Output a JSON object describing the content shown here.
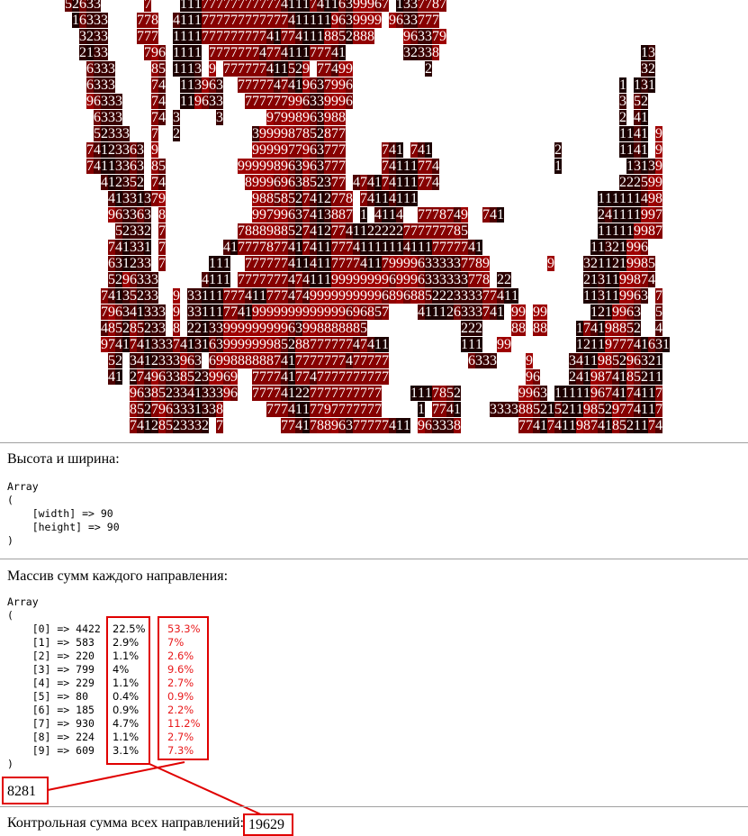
{
  "grid": {
    "width": 90,
    "rows": [
      [
        [
          0,
          "52633"
        ],
        [
          11,
          "7"
        ],
        [
          16,
          "11177777777777411174116399967"
        ],
        [
          46,
          "1337787"
        ]
      ],
      [
        [
          1,
          "16333"
        ],
        [
          10,
          "778"
        ],
        [
          15,
          "41117777777777774111119639999"
        ],
        [
          45,
          "9633777"
        ]
      ],
      [
        [
          2,
          "3233"
        ],
        [
          10,
          "777"
        ],
        [
          15,
          "1111777777777417741118852888"
        ],
        [
          47,
          "963379"
        ]
      ],
      [
        [
          2,
          "2133"
        ],
        [
          11,
          "796"
        ],
        [
          15,
          "1111"
        ],
        [
          20,
          "7777777477411177741"
        ],
        [
          47,
          "32338"
        ],
        [
          80,
          "13"
        ]
      ],
      [
        [
          3,
          "6333"
        ],
        [
          12,
          "85"
        ],
        [
          15,
          "1113"
        ],
        [
          20,
          "9"
        ],
        [
          22,
          "777777411529"
        ],
        [
          35,
          "77499"
        ],
        [
          50,
          "2"
        ],
        [
          80,
          "32"
        ]
      ],
      [
        [
          3,
          "6333"
        ],
        [
          12,
          "74"
        ],
        [
          16,
          "113963"
        ],
        [
          24,
          "7777747419637996"
        ],
        [
          77,
          "1"
        ],
        [
          79,
          "131"
        ]
      ],
      [
        [
          3,
          "96333"
        ],
        [
          12,
          "74"
        ],
        [
          16,
          "119633"
        ],
        [
          25,
          "777777996339996"
        ],
        [
          77,
          "3"
        ],
        [
          79,
          "52"
        ]
      ],
      [
        [
          4,
          "6333"
        ],
        [
          12,
          "74"
        ],
        [
          15,
          "3"
        ],
        [
          21,
          "3"
        ],
        [
          28,
          "97998963988"
        ],
        [
          77,
          "2"
        ],
        [
          79,
          "41"
        ]
      ],
      [
        [
          4,
          "52333"
        ],
        [
          12,
          "7"
        ],
        [
          15,
          "2"
        ],
        [
          26,
          "3999987852877"
        ],
        [
          77,
          "1141"
        ],
        [
          82,
          "9"
        ]
      ],
      [
        [
          3,
          "74123363"
        ],
        [
          12,
          "9"
        ],
        [
          26,
          "9999977963777"
        ],
        [
          44,
          "741"
        ],
        [
          48,
          "741"
        ],
        [
          68,
          "2"
        ],
        [
          77,
          "1141"
        ],
        [
          82,
          "9"
        ]
      ],
      [
        [
          3,
          "74113363"
        ],
        [
          12,
          "85"
        ],
        [
          24,
          "999998963963777"
        ],
        [
          44,
          "74111774"
        ],
        [
          68,
          "1"
        ],
        [
          78,
          "13139"
        ]
      ],
      [
        [
          5,
          "412352"
        ],
        [
          12,
          "74"
        ],
        [
          25,
          "89996963852377 4"
        ],
        [
          41,
          "74174111774"
        ],
        [
          77,
          "222599"
        ]
      ],
      [
        [
          6,
          "41331379"
        ],
        [
          26,
          "98858527412778"
        ],
        [
          41,
          "74114111"
        ],
        [
          74,
          "111111498"
        ]
      ],
      [
        [
          6,
          "963363"
        ],
        [
          13,
          "8"
        ],
        [
          26,
          "99799637413887"
        ],
        [
          41,
          "1"
        ],
        [
          43,
          "4114"
        ],
        [
          49,
          "7778749"
        ],
        [
          58,
          "741"
        ],
        [
          74,
          "241111997"
        ]
      ],
      [
        [
          7,
          "52332"
        ],
        [
          13,
          "7"
        ],
        [
          24,
          "78889885274127741122222777777785"
        ],
        [
          74,
          "111119987"
        ]
      ],
      [
        [
          6,
          "741331"
        ],
        [
          13,
          "7"
        ],
        [
          22,
          "4177778774174117774"
        ],
        [
          41,
          "11111141117777741"
        ],
        [
          73,
          "11321996"
        ]
      ],
      [
        [
          6,
          "631233"
        ],
        [
          13,
          "7"
        ],
        [
          20,
          "111"
        ],
        [
          25,
          "7777774114117777411799996333337789"
        ],
        [
          67,
          "9"
        ],
        [
          72,
          "3211219985"
        ]
      ],
      [
        [
          6,
          "5296333"
        ],
        [
          19,
          "4111"
        ],
        [
          24,
          "77777774741119999999969996333333778"
        ],
        [
          60,
          "22"
        ],
        [
          72,
          "2131199874"
        ]
      ],
      [
        [
          5,
          "74135233"
        ],
        [
          15,
          "9"
        ],
        [
          17,
          "3311177741177747499999999996896885222333377411"
        ],
        [
          72,
          "113119963"
        ],
        [
          82,
          "7"
        ]
      ],
      [
        [
          5,
          "796341333"
        ],
        [
          15,
          "9"
        ],
        [
          17,
          "3311177419999999999999696857"
        ],
        [
          49,
          "411126333741"
        ],
        [
          62,
          "99"
        ],
        [
          65,
          "99"
        ],
        [
          73,
          "1219963"
        ],
        [
          82,
          "5"
        ]
      ],
      [
        [
          5,
          "485285233"
        ],
        [
          15,
          "8"
        ],
        [
          17,
          "2213399999999963998888885"
        ],
        [
          55,
          "222"
        ],
        [
          62,
          "88"
        ],
        [
          65,
          "88"
        ],
        [
          71,
          "174198852"
        ],
        [
          82,
          "4"
        ]
      ],
      [
        [
          5,
          "9741741333741316399999998528877777747411"
        ],
        [
          55,
          "111"
        ],
        [
          60,
          "99"
        ],
        [
          71,
          "1211977741631"
        ]
      ],
      [
        [
          6,
          "52"
        ],
        [
          9,
          "3412333963"
        ],
        [
          20,
          "6998888887417777777477777"
        ],
        [
          56,
          "6333"
        ],
        [
          64,
          "9"
        ],
        [
          70,
          "3411985296321"
        ]
      ],
      [
        [
          6,
          "41"
        ],
        [
          9,
          "274963385239969"
        ],
        [
          26,
          "7777417747777777777"
        ],
        [
          64,
          "96"
        ],
        [
          70,
          "2419874185211"
        ]
      ],
      [
        [
          9,
          "963852334133396"
        ],
        [
          26,
          "777741227777777777"
        ],
        [
          48,
          "1117852"
        ],
        [
          63,
          "9963"
        ],
        [
          68,
          "111119674174117"
        ]
      ],
      [
        [
          9,
          "8527963331338"
        ],
        [
          28,
          "7774117797777777"
        ],
        [
          49,
          "1"
        ],
        [
          51,
          "7741"
        ],
        [
          59,
          "333388521521198529774117"
        ]
      ],
      [
        [
          9,
          "74128523332"
        ],
        [
          21,
          "7"
        ],
        [
          30,
          "774178896377777411"
        ],
        [
          49,
          "963338"
        ],
        [
          63,
          "77417411987418521174"
        ]
      ]
    ],
    "digit_colors": {
      "1": "#1c0000",
      "2": "#2a0000",
      "3": "#3a0000",
      "4": "#4e0000",
      "5": "#640000",
      "6": "#700000",
      "7": "#860000",
      "8": "#920000",
      "9": "#9e0000"
    }
  },
  "size_section": {
    "heading": "Высота и ширина:",
    "dump": "Array\n(\n    [width] => 90\n    [height] => 90\n)"
  },
  "sums_section": {
    "heading": "Массив сумм каждого направления:",
    "dump": "Array\n(\n    [0] => 4422\n    [1] => 583\n    [2] => 220\n    [3] => 799\n    [4] => 229\n    [5] => 80\n    [6] => 185\n    [7] => 930\n    [8] => 224\n    [9] => 609\n)",
    "percent_total": [
      "22.5%",
      "2.9%",
      "1.1%",
      "4%",
      "1.1%",
      "0.4%",
      "0.9%",
      "4.7%",
      "1.1%",
      "3.1%"
    ],
    "percent_subset": [
      "53.3%",
      "7%",
      "2.6%",
      "9.6%",
      "2.7%",
      "0.9%",
      "2.2%",
      "11.2%",
      "2.7%",
      "7.3%"
    ],
    "subset_sum": "8281"
  },
  "checksum": {
    "label": "Контрольная сумма всех направлений:",
    "value": "19629"
  },
  "colors": {
    "annotation_red": "#e00000",
    "red_text": "#e8191b"
  }
}
